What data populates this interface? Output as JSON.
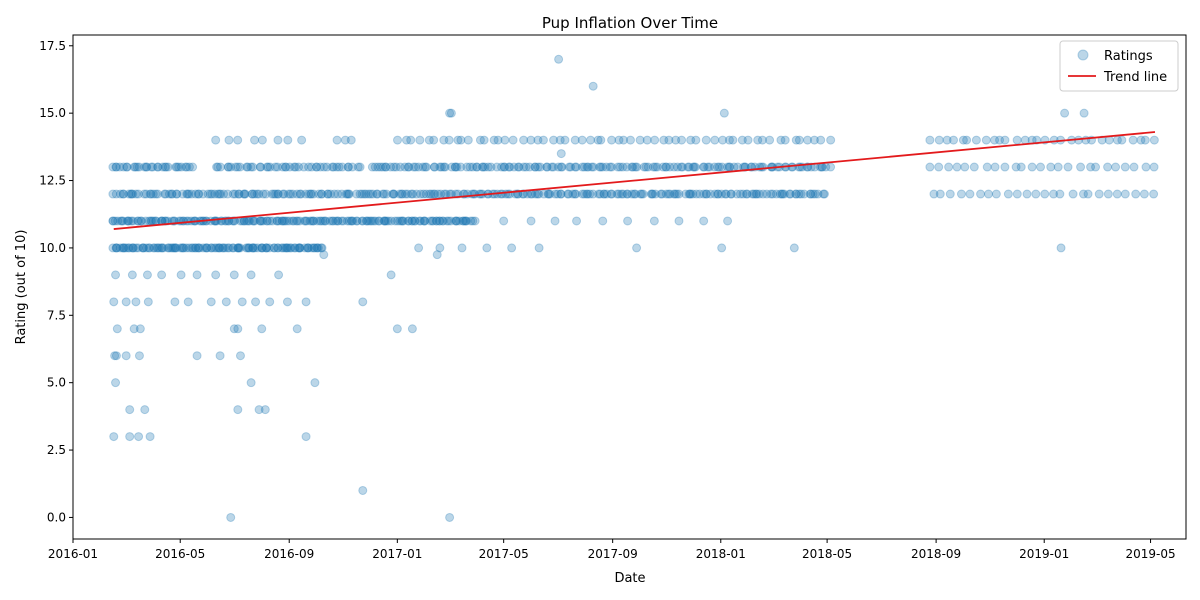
{
  "chart_data": {
    "type": "scatter",
    "title": "Pup Inflation Over Time",
    "xlabel": "Date",
    "ylabel": "Rating (out of 10)",
    "xlim": [
      "2016-01-01",
      "2019-06-10"
    ],
    "ylim": [
      -0.8,
      17.9
    ],
    "x_ticks": [
      "2016-01",
      "2016-05",
      "2016-09",
      "2017-01",
      "2017-05",
      "2017-09",
      "2018-01",
      "2018-05",
      "2018-09",
      "2019-01",
      "2019-05"
    ],
    "y_ticks": [
      "0.0",
      "2.5",
      "5.0",
      "7.5",
      "10.0",
      "12.5",
      "15.0",
      "17.5"
    ],
    "legend": {
      "position": "top-right",
      "entries": [
        "Ratings",
        "Trend line"
      ]
    },
    "colors": {
      "points": "#1f77b4",
      "trend": "#e31a1c"
    },
    "series": [
      {
        "name": "Ratings",
        "kind": "scatter",
        "bands": [
          {
            "y": 13,
            "segments": [
              [
                "2016-02-15",
                "2016-05-15",
                30
              ],
              [
                "2016-06-10",
                "2016-11-20",
                45
              ],
              [
                "2016-12-01",
                "2018-05-05",
                150
              ],
              [
                "2018-08-25",
                "2019-05-05",
                25
              ]
            ]
          },
          {
            "y": 12,
            "segments": [
              [
                "2016-02-15",
                "2018-04-28",
                260
              ],
              [
                "2018-08-28",
                "2019-05-06",
                25
              ]
            ]
          },
          {
            "y": 11,
            "segments": [
              [
                "2016-02-15",
                "2017-03-30",
                180
              ],
              [
                "2017-05-01",
                "2018-01-10",
                10
              ]
            ]
          },
          {
            "y": 10,
            "segments": [
              [
                "2016-02-15",
                "2016-10-10",
                120
              ]
            ]
          },
          {
            "y": 14,
            "segments": [
              [
                "2016-06-10",
                "2016-09-15",
                8
              ],
              [
                "2016-10-25",
                "2016-11-10",
                3
              ],
              [
                "2017-01-01",
                "2018-05-05",
                60
              ],
              [
                "2018-08-25",
                "2019-05-06",
                30
              ]
            ]
          }
        ],
        "points": [
          [
            "2016-02-16",
            3
          ],
          [
            "2016-03-05",
            3
          ],
          [
            "2016-03-15",
            3
          ],
          [
            "2016-03-28",
            3
          ],
          [
            "2016-09-20",
            3
          ],
          [
            "2016-02-18",
            5
          ],
          [
            "2016-07-20",
            5
          ],
          [
            "2016-09-30",
            5
          ],
          [
            "2016-03-05",
            4
          ],
          [
            "2016-03-22",
            4
          ],
          [
            "2016-07-05",
            4
          ],
          [
            "2016-07-29",
            4
          ],
          [
            "2016-08-05",
            4
          ],
          [
            "2016-02-17",
            6
          ],
          [
            "2016-02-19",
            6
          ],
          [
            "2016-03-01",
            6
          ],
          [
            "2016-03-16",
            6
          ],
          [
            "2016-05-20",
            6
          ],
          [
            "2016-06-15",
            6
          ],
          [
            "2016-07-08",
            6
          ],
          [
            "2016-02-20",
            7
          ],
          [
            "2016-03-10",
            7
          ],
          [
            "2016-03-17",
            7
          ],
          [
            "2016-07-01",
            7
          ],
          [
            "2016-07-05",
            7
          ],
          [
            "2016-08-01",
            7
          ],
          [
            "2016-09-10",
            7
          ],
          [
            "2017-01-01",
            7
          ],
          [
            "2017-01-18",
            7
          ],
          [
            "2016-02-16",
            8
          ],
          [
            "2016-03-01",
            8
          ],
          [
            "2016-03-12",
            8
          ],
          [
            "2016-03-26",
            8
          ],
          [
            "2016-04-25",
            8
          ],
          [
            "2016-05-10",
            8
          ],
          [
            "2016-06-05",
            8
          ],
          [
            "2016-06-22",
            8
          ],
          [
            "2016-07-10",
            8
          ],
          [
            "2016-07-25",
            8
          ],
          [
            "2016-08-10",
            8
          ],
          [
            "2016-08-30",
            8
          ],
          [
            "2016-09-20",
            8
          ],
          [
            "2016-11-23",
            8
          ],
          [
            "2016-02-18",
            9
          ],
          [
            "2016-03-08",
            9
          ],
          [
            "2016-03-25",
            9
          ],
          [
            "2016-04-10",
            9
          ],
          [
            "2016-05-02",
            9
          ],
          [
            "2016-05-20",
            9
          ],
          [
            "2016-06-10",
            9
          ],
          [
            "2016-07-01",
            9
          ],
          [
            "2016-07-20",
            9
          ],
          [
            "2016-08-20",
            9
          ],
          [
            "2016-12-25",
            9
          ],
          [
            "2016-10-10",
            9.75
          ],
          [
            "2017-02-15",
            9.75
          ],
          [
            "2017-01-25",
            10
          ],
          [
            "2017-02-18",
            10
          ],
          [
            "2017-03-15",
            10
          ],
          [
            "2017-04-12",
            10
          ],
          [
            "2017-05-10",
            10
          ],
          [
            "2017-06-10",
            10
          ],
          [
            "2017-09-28",
            10
          ],
          [
            "2018-01-02",
            10
          ],
          [
            "2018-03-25",
            10
          ],
          [
            "2019-01-20",
            10
          ],
          [
            "2017-07-05",
            13.5
          ],
          [
            "2017-03-01",
            15
          ],
          [
            "2017-03-03",
            15
          ],
          [
            "2018-01-05",
            15
          ],
          [
            "2019-01-24",
            15
          ],
          [
            "2019-02-15",
            15
          ],
          [
            "2017-07-02",
            17
          ],
          [
            "2017-08-10",
            16
          ],
          [
            "2016-06-27",
            0
          ],
          [
            "2017-03-01",
            0
          ],
          [
            "2016-11-23",
            1
          ]
        ]
      },
      {
        "name": "Trend line",
        "kind": "line",
        "x": [
          "2016-02-16",
          "2019-05-06"
        ],
        "y": [
          10.7,
          14.3
        ]
      }
    ]
  }
}
